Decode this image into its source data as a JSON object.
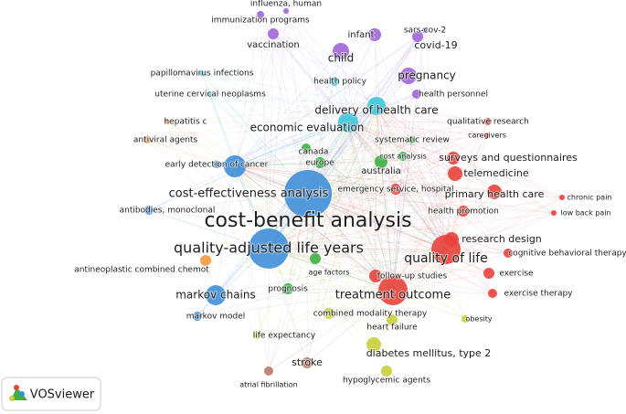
{
  "nodes": [
    {
      "label": "influenza, human"
    },
    {
      "label": "immunization programs"
    },
    {
      "label": "vaccination"
    },
    {
      "label": "infant"
    },
    {
      "label": "sars-cov-2"
    },
    {
      "label": "covid-19"
    },
    {
      "label": "child"
    },
    {
      "label": "papillomavirus infections"
    },
    {
      "label": "pregnancy"
    },
    {
      "label": "uterine cervical neoplasms"
    },
    {
      "label": "health policy"
    },
    {
      "label": "health personnel"
    },
    {
      "label": "delivery of health care"
    },
    {
      "label": "hepatitis c"
    },
    {
      "label": "qualitative research"
    },
    {
      "label": "economic evaluation"
    },
    {
      "label": "caregivers"
    },
    {
      "label": "antiviral agents"
    },
    {
      "label": "systematic review"
    },
    {
      "label": "canada"
    },
    {
      "label": "cost analysis"
    },
    {
      "label": "surveys and questionnaires"
    },
    {
      "label": "europe"
    },
    {
      "label": "australia"
    },
    {
      "label": "early detection of cancer"
    },
    {
      "label": "telemedicine"
    },
    {
      "label": "cost-effectiveness analysis"
    },
    {
      "label": "emergency service, hospital"
    },
    {
      "label": "primary health care"
    },
    {
      "label": "chronic pain"
    },
    {
      "label": "antibodies, monoclonal"
    },
    {
      "label": "health promotion"
    },
    {
      "label": "low back pain"
    },
    {
      "label": "cost-benefit analysis"
    },
    {
      "label": "research design"
    },
    {
      "label": "quality-adjusted life years"
    },
    {
      "label": "quality of life"
    },
    {
      "label": "cognitive behavioral therapy"
    },
    {
      "label": "antineoplastic combined chemot"
    },
    {
      "label": "age factors"
    },
    {
      "label": "exercise"
    },
    {
      "label": "follow-up studies"
    },
    {
      "label": "prognosis"
    },
    {
      "label": "markov chains"
    },
    {
      "label": "treatment outcome"
    },
    {
      "label": "exercise therapy"
    },
    {
      "label": "combined modality therapy"
    },
    {
      "label": "markov model"
    },
    {
      "label": "obesity"
    },
    {
      "label": "heart failure"
    },
    {
      "label": "life expectancy"
    },
    {
      "label": "diabetes mellitus, type 2"
    },
    {
      "label": "stroke"
    },
    {
      "label": "hypoglycemic agents"
    },
    {
      "label": "atrial fibrillation"
    }
  ],
  "logo": {
    "label": "VOSviewer"
  }
}
